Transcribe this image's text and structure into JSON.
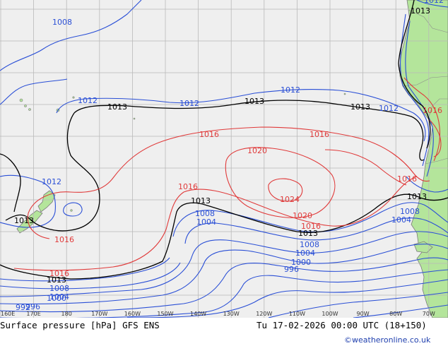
{
  "colors": {
    "ocean": "#efefef",
    "land": "#b4e59b",
    "grid": "#b9b9b9",
    "coast": "#7a7a7a",
    "low": "#2a4fd6",
    "neutral": "#000000",
    "high": "#e03a3a",
    "credit": "#1f3fae"
  },
  "isobar_labels": [
    {
      "text": "1008",
      "type": "low"
    },
    {
      "text": "1012",
      "type": "low"
    },
    {
      "text": "1012",
      "type": "low"
    },
    {
      "text": "1012",
      "type": "low"
    },
    {
      "text": "1012",
      "type": "low"
    },
    {
      "text": "1012",
      "type": "low"
    },
    {
      "text": "1008",
      "type": "low"
    },
    {
      "text": "1004",
      "type": "low"
    },
    {
      "text": "1008",
      "type": "low"
    },
    {
      "text": "1004",
      "type": "low"
    },
    {
      "text": "1000",
      "type": "low"
    },
    {
      "text": "996",
      "type": "low"
    },
    {
      "text": "1008",
      "type": "low"
    },
    {
      "text": "1004",
      "type": "low"
    },
    {
      "text": "1008",
      "type": "low"
    },
    {
      "text": "1004",
      "type": "low"
    },
    {
      "text": "1000",
      "type": "low"
    },
    {
      "text": "996",
      "type": "low"
    },
    {
      "text": "992",
      "type": "low"
    },
    {
      "text": "1012",
      "type": "low"
    },
    {
      "text": "1013",
      "type": "neutral"
    },
    {
      "text": "1013",
      "type": "neutral"
    },
    {
      "text": "1013",
      "type": "neutral"
    },
    {
      "text": "1013",
      "type": "neutral"
    },
    {
      "text": "1013",
      "type": "neutral"
    },
    {
      "text": "1013",
      "type": "neutral"
    },
    {
      "text": "1013",
      "type": "neutral"
    },
    {
      "text": "1013",
      "type": "neutral"
    },
    {
      "text": "1013",
      "type": "neutral"
    },
    {
      "text": "1016",
      "type": "high"
    },
    {
      "text": "1016",
      "type": "high"
    },
    {
      "text": "1016",
      "type": "high"
    },
    {
      "text": "1016",
      "type": "high"
    },
    {
      "text": "1016",
      "type": "high"
    },
    {
      "text": "1016",
      "type": "high"
    },
    {
      "text": "1016",
      "type": "high"
    },
    {
      "text": "1016",
      "type": "high"
    },
    {
      "text": "1020",
      "type": "high"
    },
    {
      "text": "1020",
      "type": "high"
    },
    {
      "text": "1024",
      "type": "high"
    }
  ],
  "lon_ticks": [
    "160E",
    "170E",
    "180",
    "170W",
    "160W",
    "150W",
    "140W",
    "130W",
    "120W",
    "110W",
    "100W",
    "90W",
    "80W",
    "70W"
  ],
  "footer": {
    "title": "Surface pressure [hPa] GFS ENS",
    "valid_time": "Tu 17-02-2026 00:00 UTC (18+150)",
    "credit": "©weatheronline.co.uk"
  }
}
